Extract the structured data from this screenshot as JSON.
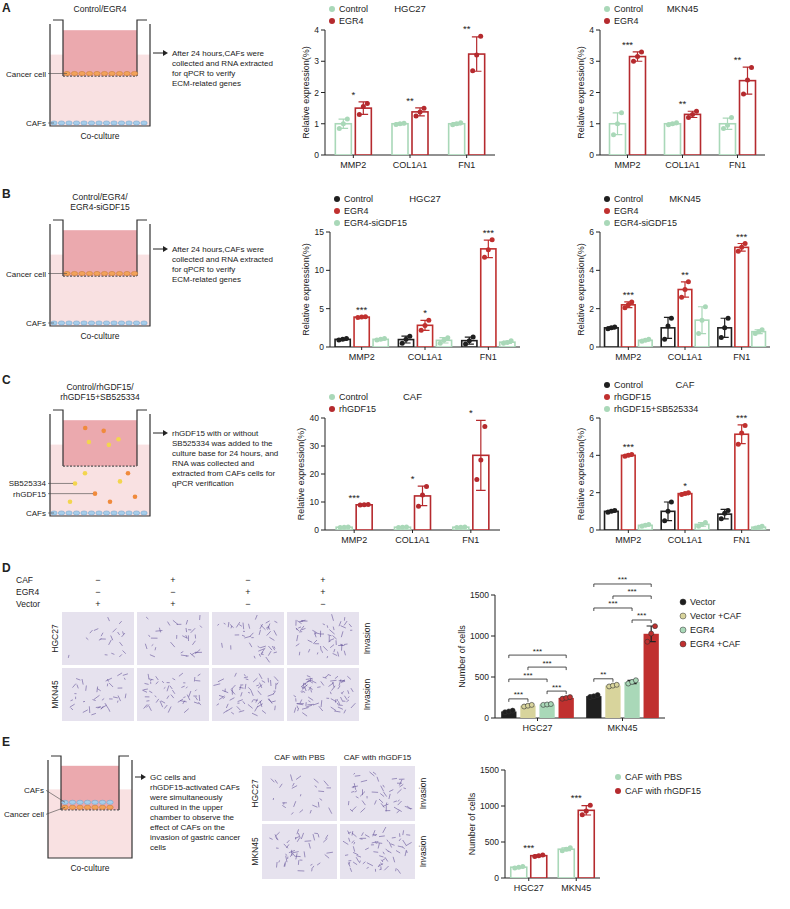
{
  "chart_data": [
    {
      "type": "bar",
      "title": "HGC27",
      "y_label": "Relative expression(%)",
      "categories": [
        "MMP2",
        "COL1A1",
        "FN1"
      ],
      "series": [
        {
          "name": "Control",
          "color": "#a9d8b8",
          "values": [
            1.0,
            1.0,
            1.0
          ],
          "errors": [
            0.15,
            0.03,
            0.04
          ],
          "points": [
            [
              0.85,
              1.0,
              1.15
            ],
            [
              0.98,
              1.0,
              1.02
            ],
            [
              0.97,
              1.0,
              1.03
            ]
          ]
        },
        {
          "name": "EGR4",
          "color": "#b52a2e",
          "values": [
            1.5,
            1.38,
            3.23
          ],
          "errors": [
            0.2,
            0.13,
            0.55
          ],
          "points": [
            [
              1.3,
              1.55,
              1.65
            ],
            [
              1.25,
              1.38,
              1.5
            ],
            [
              2.7,
              3.2,
              3.8
            ]
          ]
        }
      ],
      "ylim": [
        0,
        4
      ],
      "yticks": [
        0,
        1,
        2,
        3,
        4
      ],
      "legend": "top",
      "significance": [
        "*",
        "**",
        "**"
      ]
    },
    {
      "type": "bar",
      "title": "MKN45",
      "y_label": "Relative expression(%)",
      "categories": [
        "MMP2",
        "COL1A1",
        "FN1"
      ],
      "series": [
        {
          "name": "Control",
          "color": "#a9d8b8",
          "values": [
            1.0,
            1.0,
            1.0
          ],
          "errors": [
            0.35,
            0.03,
            0.18
          ],
          "points": [
            [
              0.65,
              1.0,
              1.35
            ],
            [
              0.97,
              1.0,
              1.03
            ],
            [
              0.85,
              0.95,
              1.2
            ]
          ]
        },
        {
          "name": "EGR4",
          "color": "#b52a2e",
          "values": [
            3.15,
            1.3,
            2.38
          ],
          "errors": [
            0.15,
            0.1,
            0.43
          ],
          "points": [
            [
              3.0,
              3.15,
              3.3
            ],
            [
              1.2,
              1.3,
              1.4
            ],
            [
              1.95,
              2.4,
              2.8
            ]
          ]
        }
      ],
      "ylim": [
        0,
        4
      ],
      "yticks": [
        0,
        1,
        2,
        3,
        4
      ],
      "legend": "top",
      "significance": [
        "***",
        "**",
        "**"
      ]
    },
    {
      "type": "bar",
      "title": "HGC27",
      "y_label": "Relative expression(%)",
      "categories": [
        "MMP2",
        "COL1A1",
        "FN1"
      ],
      "series": [
        {
          "name": "Control",
          "color": "#1f1f1f",
          "values": [
            1.0,
            0.97,
            0.83
          ],
          "errors": [
            0.1,
            0.45,
            0.45
          ],
          "points": [
            [
              0.9,
              1.0,
              1.1
            ],
            [
              0.5,
              1.0,
              1.4
            ],
            [
              0.4,
              0.8,
              1.3
            ]
          ]
        },
        {
          "name": "EGR4",
          "color": "#c0302f",
          "values": [
            3.9,
            2.83,
            12.8
          ],
          "errors": [
            0.05,
            0.65,
            1.15
          ],
          "points": [
            [
              3.85,
              3.9,
              3.95
            ],
            [
              2.2,
              2.8,
              3.5
            ],
            [
              11.7,
              12.7,
              14.0
            ]
          ]
        },
        {
          "name": "EGR4-siGDF15",
          "color": "#a9d8b8",
          "values": [
            1.0,
            0.87,
            0.63
          ],
          "errors": [
            0.1,
            0.35,
            0.15
          ],
          "points": [
            [
              0.9,
              1.0,
              1.1
            ],
            [
              0.5,
              0.9,
              1.2
            ],
            [
              0.5,
              0.6,
              0.8
            ]
          ]
        }
      ],
      "ylim": [
        0,
        15
      ],
      "yticks": [
        0,
        5,
        10,
        15
      ],
      "legend": "top",
      "significance": [
        "***",
        "*",
        "***"
      ]
    },
    {
      "type": "bar",
      "title": "MKN45",
      "y_label": "Relative expression(%)",
      "categories": [
        "MMP2",
        "COL1A1",
        "FN1"
      ],
      "series": [
        {
          "name": "Control",
          "color": "#1f1f1f",
          "values": [
            1.0,
            1.0,
            1.0
          ],
          "errors": [
            0.05,
            0.55,
            0.5
          ],
          "points": [
            [
              0.95,
              1.0,
              1.05
            ],
            [
              0.4,
              1.1,
              1.5
            ],
            [
              0.5,
              1.0,
              1.5
            ]
          ]
        },
        {
          "name": "EGR4",
          "color": "#c0302f",
          "values": [
            2.2,
            3.0,
            5.2
          ],
          "errors": [
            0.15,
            0.4,
            0.2
          ],
          "points": [
            [
              2.05,
              2.2,
              2.35
            ],
            [
              2.6,
              3.0,
              3.4
            ],
            [
              5.0,
              5.2,
              5.4
            ]
          ]
        },
        {
          "name": "EGR4-siGDF15",
          "color": "#a9d8b8",
          "values": [
            0.35,
            1.4,
            0.8
          ],
          "errors": [
            0.05,
            0.7,
            0.1
          ],
          "points": [
            [
              0.3,
              0.35,
              0.4
            ],
            [
              0.7,
              1.4,
              2.1
            ],
            [
              0.7,
              0.8,
              0.9
            ]
          ]
        }
      ],
      "ylim": [
        0,
        6
      ],
      "yticks": [
        0,
        2,
        4,
        6
      ],
      "legend": "top",
      "significance": [
        "***",
        "**",
        "***"
      ]
    },
    {
      "type": "bar",
      "title": "CAF",
      "y_label": "Relative expression(%)",
      "categories": [
        "MMP2",
        "COL1A1",
        "FN1"
      ],
      "series": [
        {
          "name": "Control",
          "color": "#a9d8b8",
          "values": [
            1.0,
            1.0,
            1.0
          ],
          "errors": [
            0.1,
            0.1,
            0.1
          ],
          "points": [
            [
              0.9,
              1.0,
              1.1
            ],
            [
              0.9,
              1.0,
              1.1
            ],
            [
              0.9,
              1.0,
              1.1
            ]
          ]
        },
        {
          "name": "rhGDF15",
          "color": "#b52a2e",
          "values": [
            9.0,
            12.17,
            26.67
          ],
          "errors": [
            0.1,
            3.5,
            12.5
          ],
          "points": [
            [
              8.9,
              9.0,
              9.1
            ],
            [
              8.5,
              12.5,
              15.5
            ],
            [
              18.0,
              25.0,
              37.0
            ]
          ]
        }
      ],
      "ylim": [
        0,
        40
      ],
      "yticks": [
        0,
        10,
        20,
        30,
        40
      ],
      "legend": "top",
      "significance": [
        "***",
        "*",
        "*"
      ]
    },
    {
      "type": "bar",
      "title": "CAF",
      "y_label": "Relative expression(%)",
      "categories": [
        "MMP2",
        "COL1A1",
        "FN1"
      ],
      "series": [
        {
          "name": "Control",
          "color": "#1f1f1f",
          "values": [
            1.0,
            1.0,
            0.85
          ],
          "errors": [
            0.05,
            0.5,
            0.25
          ],
          "points": [
            [
              0.95,
              1.0,
              1.05
            ],
            [
              0.5,
              1.0,
              1.5
            ],
            [
              0.6,
              0.9,
              1.05
            ]
          ]
        },
        {
          "name": "rhGDF15",
          "color": "#c0302f",
          "values": [
            4.0,
            1.95,
            5.13
          ],
          "errors": [
            0.05,
            0.05,
            0.5
          ],
          "points": [
            [
              3.95,
              4.0,
              4.05
            ],
            [
              1.9,
              1.95,
              2.0
            ],
            [
              4.6,
              5.2,
              5.6
            ]
          ]
        },
        {
          "name": "rhGDF15+SB525334",
          "color": "#a9d8b8",
          "values": [
            0.25,
            0.3,
            0.15
          ],
          "errors": [
            0.05,
            0.1,
            0.05
          ],
          "points": [
            [
              0.2,
              0.25,
              0.3
            ],
            [
              0.2,
              0.3,
              0.4
            ],
            [
              0.1,
              0.15,
              0.2
            ]
          ]
        }
      ],
      "ylim": [
        0,
        6
      ],
      "yticks": [
        0,
        2,
        4,
        6
      ],
      "legend": "top",
      "significance": [
        "***",
        "*",
        "***"
      ]
    },
    {
      "type": "bar",
      "y_label": "Number of cells",
      "categories": [
        "HGC27",
        "MKN45"
      ],
      "series": [
        {
          "name": "Vector",
          "color": "#1f1f1f",
          "values": [
            80,
            267
          ],
          "errors": [
            10,
            12
          ],
          "points": [
            [
              70,
              80,
              90
            ],
            [
              255,
              265,
              280
            ]
          ]
        },
        {
          "name": "Vector +CAF",
          "color": "#d8d49c",
          "values": [
            150,
            395
          ],
          "errors": [
            10,
            10
          ],
          "points": [
            [
              140,
              150,
              160
            ],
            [
              385,
              395,
              405
            ]
          ]
        },
        {
          "name": "EGR4",
          "color": "#a9d8b8",
          "values": [
            165,
            440
          ],
          "errors": [
            5,
            20
          ],
          "points": [
            [
              160,
              165,
              170
            ],
            [
              420,
              440,
              460
            ]
          ]
        },
        {
          "name": "EGR4 +CAF",
          "color": "#c0302f",
          "values": [
            245,
            1027
          ],
          "errors": [
            10,
            95
          ],
          "points": [
            [
              235,
              245,
              255
            ],
            [
              930,
              1030,
              1120
            ]
          ]
        }
      ],
      "ylim": [
        0,
        1500
      ],
      "yticks": [
        0,
        500,
        1000,
        1500
      ],
      "legend": "right",
      "comparisons": [
        {
          "group": "HGC27",
          "pair": [
            "Vector",
            "Vector +CAF"
          ],
          "label": "***"
        },
        {
          "group": "HGC27",
          "pair": [
            "Vector",
            "EGR4"
          ],
          "label": "***"
        },
        {
          "group": "HGC27",
          "pair": [
            "Vector",
            "EGR4 +CAF"
          ],
          "label": "***"
        },
        {
          "group": "HGC27",
          "pair": [
            "Vector +CAF",
            "EGR4 +CAF"
          ],
          "label": "***"
        },
        {
          "group": "HGC27",
          "pair": [
            "EGR4",
            "EGR4 +CAF"
          ],
          "label": "***"
        },
        {
          "group": "MKN45",
          "pair": [
            "Vector",
            "Vector +CAF"
          ],
          "label": "**"
        },
        {
          "group": "MKN45",
          "pair": [
            "Vector",
            "EGR4"
          ],
          "label": "***"
        },
        {
          "group": "MKN45",
          "pair": [
            "Vector",
            "EGR4 +CAF"
          ],
          "label": "***"
        },
        {
          "group": "MKN45",
          "pair": [
            "Vector +CAF",
            "EGR4 +CAF"
          ],
          "label": "***"
        },
        {
          "group": "MKN45",
          "pair": [
            "EGR4",
            "EGR4 +CAF"
          ],
          "label": "***"
        }
      ]
    },
    {
      "type": "bar",
      "y_label": "Number of cells",
      "categories": [
        "HGC27",
        "MKN45"
      ],
      "series": [
        {
          "name": "CAF with PBS",
          "color": "#a9d8b8",
          "values": [
            150,
            400
          ],
          "errors": [
            10,
            20
          ],
          "points": [
            [
              140,
              150,
              160
            ],
            [
              380,
              400,
              420
            ]
          ]
        },
        {
          "name": "CAF with rhGDF15",
          "color": "#b52a2e",
          "values": [
            310,
            940
          ],
          "errors": [
            10,
            65
          ],
          "points": [
            [
              300,
              310,
              320
            ],
            [
              880,
              930,
              1010
            ]
          ]
        }
      ],
      "ylim": [
        0,
        1500
      ],
      "yticks": [
        0,
        500,
        1000,
        1500
      ],
      "legend": "right",
      "significance": [
        "***",
        "***"
      ]
    }
  ],
  "panel_letters": [
    "A",
    "B",
    "C",
    "D",
    "E"
  ],
  "schematics": [
    {
      "title": [
        "Control/EGR4"
      ],
      "labels": [
        "Cancer cell",
        "CAFs"
      ],
      "caption": "Co-culture",
      "note": "After 24 hours,CAFs were collected and RNA extracted for qPCR to verify ECM-related genes"
    },
    {
      "title": [
        "Control/EGR4/",
        "EGR4-siGDF15"
      ],
      "labels": [
        "Cancer cell",
        "CAFs"
      ],
      "caption": "Co-culture",
      "note": "After 24 hours,CAFs were collected and RNA extracted for qPCR to verify ECM-related genes"
    },
    {
      "title": [
        "Control/rhGDF15/",
        "rhGDF15+SB525334"
      ],
      "labels": [
        "SB525334",
        "rhGDF15",
        "CAFs"
      ],
      "note": "rhGDF15 with or without SB525334 was added to the culture base for 24 hours, and RNA was collected and extracted from CAFs cells for qPCR verification"
    },
    {
      "labels": [
        "CAFs",
        "Cancer cell"
      ],
      "caption": "Co-culture",
      "note": "GC cells and rhGDF15-activated CAFs were simultaneously cultured in the upper chamber to observe the effect of CAFs on the invasion of gastric cancer cells"
    }
  ],
  "image_grids": [
    {
      "header_rows": [
        {
          "label": "CAF",
          "signs": [
            "−",
            "+",
            "−",
            "+"
          ]
        },
        {
          "label": "EGR4",
          "signs": [
            "−",
            "−",
            "+",
            "+"
          ]
        },
        {
          "label": "Vector",
          "signs": [
            "+",
            "+",
            "−",
            "−"
          ]
        }
      ],
      "rows": [
        "HGC27",
        "MKN45"
      ],
      "side_label": "Invasion"
    },
    {
      "columns": [
        "CAF with PBS",
        "CAF with rhGDF15"
      ],
      "rows": [
        "HGC27",
        "MKN45"
      ],
      "side_label": "Invasion"
    }
  ]
}
